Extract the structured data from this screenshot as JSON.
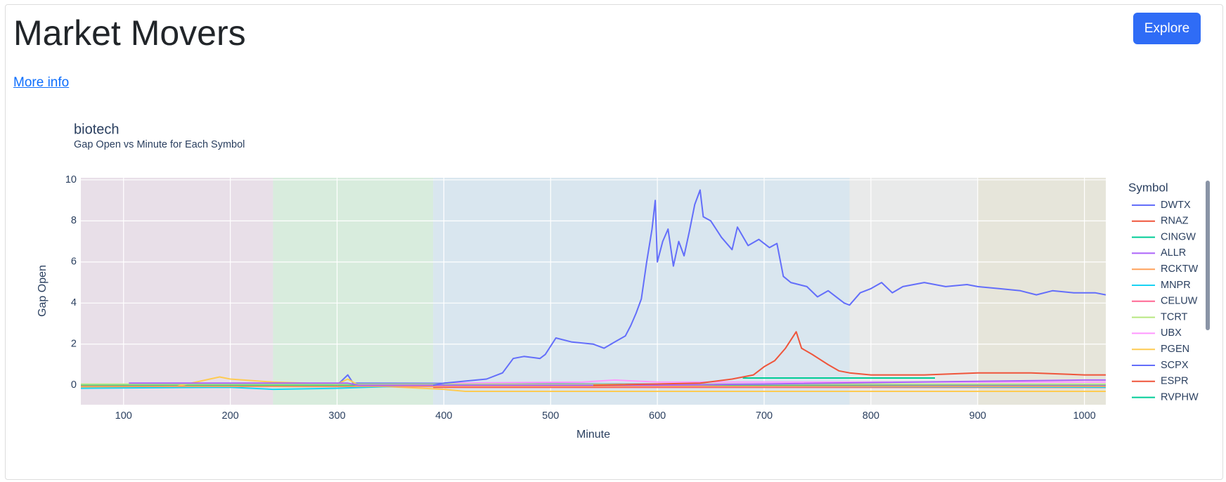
{
  "header": {
    "title": "Market Movers",
    "button": "Explore",
    "link": "More info"
  },
  "chart_data": {
    "type": "line",
    "title": "biotech",
    "subtitle": "Gap Open vs Minute for Each Symbol",
    "x_label": "Minute",
    "y_label": "Gap Open",
    "legend_title": "Symbol",
    "grid": true,
    "xlim": [
      60,
      1020
    ],
    "ylim": [
      -0.95,
      10.1
    ],
    "xticks": [
      100,
      200,
      300,
      400,
      500,
      600,
      700,
      800,
      900,
      1000
    ],
    "yticks": [
      0,
      2,
      4,
      6,
      8,
      10
    ],
    "bands": [
      {
        "from": 60,
        "to": 240,
        "color": "#e8dfe8"
      },
      {
        "from": 240,
        "to": 390,
        "color": "#d8ecdd"
      },
      {
        "from": 390,
        "to": 780,
        "color": "#d9e6ef"
      },
      {
        "from": 780,
        "to": 900,
        "color": "#e9eaea"
      },
      {
        "from": 900,
        "to": 1020,
        "color": "#e6e5da"
      }
    ],
    "series": [
      {
        "name": "DWTX",
        "color": "#636efa",
        "x": [
          390,
          400,
          420,
          440,
          455,
          465,
          475,
          490,
          495,
          505,
          520,
          540,
          550,
          560,
          570,
          575,
          580,
          585,
          590,
          595,
          598,
          600,
          605,
          610,
          615,
          620,
          625,
          630,
          635,
          640,
          643,
          650,
          660,
          670,
          675,
          685,
          695,
          705,
          712,
          718,
          725,
          740,
          750,
          760,
          775,
          780,
          790,
          800,
          810,
          820,
          830,
          850,
          870,
          890,
          900,
          920,
          940,
          955,
          970,
          990,
          1010,
          1020
        ],
        "values": [
          0.0,
          0.1,
          0.2,
          0.3,
          0.6,
          1.3,
          1.4,
          1.3,
          1.5,
          2.3,
          2.1,
          2.0,
          1.8,
          2.1,
          2.4,
          2.9,
          3.5,
          4.2,
          6.0,
          7.6,
          9.0,
          6.0,
          7.0,
          7.6,
          5.8,
          7.0,
          6.3,
          7.5,
          8.8,
          9.5,
          8.2,
          8.0,
          7.2,
          6.6,
          7.7,
          6.8,
          7.1,
          6.7,
          6.9,
          5.3,
          5.0,
          4.8,
          4.3,
          4.6,
          4.0,
          3.9,
          4.5,
          4.7,
          5.0,
          4.5,
          4.8,
          5.0,
          4.8,
          4.9,
          4.8,
          4.7,
          4.6,
          4.4,
          4.6,
          4.5,
          4.5,
          4.4
        ]
      },
      {
        "name": "RNAZ",
        "color": "#EF553B",
        "x": [
          540,
          640,
          670,
          690,
          700,
          710,
          720,
          730,
          735,
          745,
          760,
          770,
          780,
          800,
          850,
          900,
          950,
          1000,
          1020
        ],
        "values": [
          0.0,
          0.1,
          0.3,
          0.5,
          0.9,
          1.2,
          1.8,
          2.6,
          1.8,
          1.5,
          1.0,
          0.7,
          0.6,
          0.5,
          0.5,
          0.6,
          0.6,
          0.5,
          0.5
        ]
      },
      {
        "name": "CINGW",
        "color": "#00cc96",
        "x": [
          680,
          860
        ],
        "values": [
          0.35,
          0.35
        ]
      },
      {
        "name": "ALLR",
        "color": "#ab63fa",
        "x": [
          105,
          310,
          320,
          600,
          1000,
          1020
        ],
        "values": [
          0.1,
          0.1,
          0.0,
          0.0,
          0.25,
          0.25
        ]
      },
      {
        "name": "RCKTW",
        "color": "#FFA15A",
        "x": [
          60,
          1020
        ],
        "values": [
          -0.05,
          -0.05
        ]
      },
      {
        "name": "MNPR",
        "color": "#19d3f3",
        "x": [
          60,
          200,
          240,
          300,
          390,
          1020
        ],
        "values": [
          -0.15,
          -0.1,
          -0.2,
          -0.15,
          0.0,
          -0.1
        ]
      },
      {
        "name": "CELUW",
        "color": "#FF6692",
        "x": [
          60,
          1020
        ],
        "values": [
          -0.05,
          -0.1
        ]
      },
      {
        "name": "TCRT",
        "color": "#B6E880",
        "x": [
          60,
          1020
        ],
        "values": [
          0.05,
          0.05
        ]
      },
      {
        "name": "UBX",
        "color": "#FF97FF",
        "x": [
          400,
          530,
          560,
          600,
          1020
        ],
        "values": [
          0.1,
          0.15,
          0.25,
          0.15,
          0.15
        ]
      },
      {
        "name": "PGEN",
        "color": "#FECB52",
        "x": [
          60,
          150,
          190,
          200,
          240,
          300,
          310,
          320,
          400,
          420,
          1020
        ],
        "values": [
          -0.1,
          -0.05,
          0.4,
          0.3,
          0.15,
          0.05,
          0.3,
          0.0,
          -0.2,
          -0.3,
          -0.3
        ]
      },
      {
        "name": "SCPX",
        "color": "#636efa",
        "x": [
          300,
          310,
          315,
          1020
        ],
        "values": [
          0.0,
          0.5,
          0.1,
          0.0
        ]
      },
      {
        "name": "ESPR",
        "color": "#EF553B",
        "x": [
          390,
          1020
        ],
        "values": [
          -0.1,
          -0.1
        ]
      },
      {
        "name": "RVPHW",
        "color": "#00cc96",
        "x": [
          60,
          1020
        ],
        "values": [
          0.0,
          0.0
        ]
      }
    ]
  }
}
